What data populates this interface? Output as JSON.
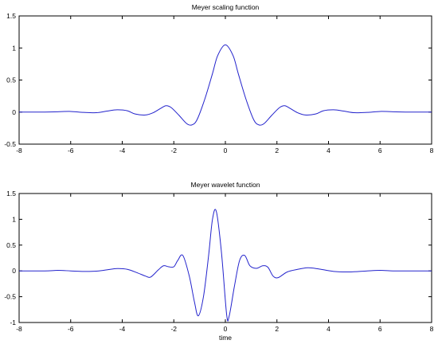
{
  "chart_data": [
    {
      "type": "line",
      "title": "Meyer scaling function",
      "xlabel": "",
      "ylabel": "",
      "xlim": [
        -8,
        8
      ],
      "ylim": [
        -0.5,
        1.5
      ],
      "xticks": [
        -8,
        -6,
        -4,
        -2,
        0,
        2,
        4,
        6,
        8
      ],
      "yticks": [
        -0.5,
        0,
        0.5,
        1,
        1.5
      ],
      "grid": false,
      "series": [
        {
          "color": "#2323cc",
          "x": [
            -8,
            -7,
            -6.5,
            -6,
            -5.5,
            -5,
            -4.6,
            -4.2,
            -3.8,
            -3.5,
            -3.1,
            -2.8,
            -2.5,
            -2.3,
            -2.1,
            -1.8,
            -1.5,
            -1.3,
            -1.1,
            -0.8,
            -0.5,
            -0.3,
            0,
            0.3,
            0.5,
            0.8,
            1.1,
            1.3,
            1.5,
            1.8,
            2.1,
            2.3,
            2.5,
            2.8,
            3.1,
            3.5,
            3.8,
            4.2,
            4.6,
            5,
            5.5,
            6,
            6.5,
            7,
            8
          ],
          "y": [
            0.0,
            0.0,
            0.005,
            0.01,
            -0.005,
            -0.01,
            0.015,
            0.035,
            0.02,
            -0.03,
            -0.045,
            -0.01,
            0.06,
            0.1,
            0.07,
            -0.05,
            -0.18,
            -0.2,
            -0.12,
            0.2,
            0.6,
            0.88,
            1.05,
            0.88,
            0.6,
            0.2,
            -0.12,
            -0.2,
            -0.18,
            -0.05,
            0.07,
            0.1,
            0.06,
            -0.01,
            -0.045,
            -0.03,
            0.02,
            0.035,
            0.015,
            -0.01,
            -0.005,
            0.01,
            0.005,
            0.0,
            0.0
          ]
        }
      ]
    },
    {
      "type": "line",
      "title": "Meyer wavelet function",
      "xlabel": "time",
      "ylabel": "",
      "xlim": [
        -8,
        8
      ],
      "ylim": [
        -1,
        1.5
      ],
      "xticks": [
        -8,
        -6,
        -4,
        -2,
        0,
        2,
        4,
        6,
        8
      ],
      "yticks": [
        -1,
        -0.5,
        0,
        0.5,
        1,
        1.5
      ],
      "grid": false,
      "series": [
        {
          "color": "#2323cc",
          "x": [
            -8,
            -7,
            -6.5,
            -6,
            -5.5,
            -5,
            -4.6,
            -4.2,
            -3.8,
            -3.4,
            -3.1,
            -2.9,
            -2.6,
            -2.4,
            -2.2,
            -2.0,
            -1.85,
            -1.65,
            -1.4,
            -1.2,
            -1.05,
            -0.85,
            -0.65,
            -0.5,
            -0.35,
            -0.15,
            0.05,
            0.15,
            0.35,
            0.55,
            0.75,
            0.95,
            1.2,
            1.45,
            1.65,
            1.85,
            2.05,
            2.4,
            2.8,
            3.2,
            3.6,
            4.2,
            4.8,
            5.5,
            6,
            6.5,
            7,
            8
          ],
          "y": [
            0.0,
            0.0,
            0.01,
            0.0,
            -0.01,
            -0.005,
            0.02,
            0.045,
            0.03,
            -0.04,
            -0.1,
            -0.12,
            0.02,
            0.1,
            0.08,
            0.08,
            0.2,
            0.3,
            -0.1,
            -0.6,
            -0.87,
            -0.5,
            0.3,
            1.0,
            1.15,
            0.35,
            -0.85,
            -0.87,
            -0.3,
            0.2,
            0.3,
            0.1,
            0.05,
            0.1,
            0.07,
            -0.1,
            -0.13,
            -0.02,
            0.03,
            0.06,
            0.04,
            -0.01,
            -0.02,
            0.0,
            0.01,
            0.0,
            0.0,
            0.0
          ]
        }
      ]
    }
  ]
}
